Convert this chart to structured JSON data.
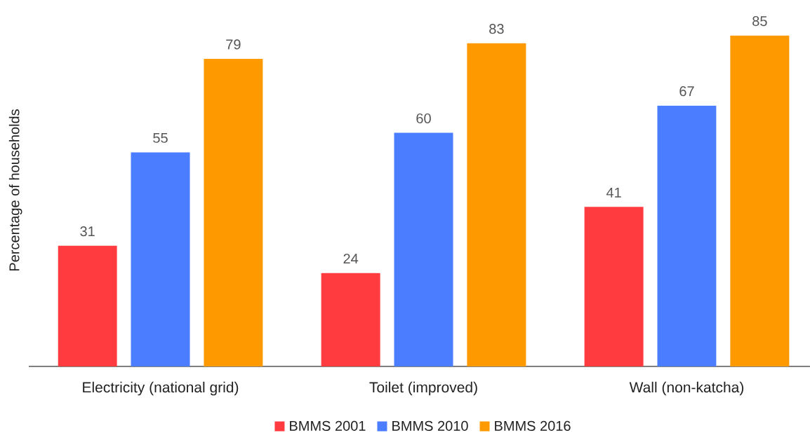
{
  "chart_data": {
    "type": "bar",
    "ylabel": "Percentage of households",
    "categories": [
      "Electricity (national grid)",
      "Toilet (improved)",
      "Wall (non-katcha)"
    ],
    "series": [
      {
        "name": "BMMS 2001",
        "color": "#ff3b3f",
        "values": [
          31,
          24,
          41
        ]
      },
      {
        "name": "BMMS 2010",
        "color": "#4a7dff",
        "values": [
          55,
          60,
          67
        ]
      },
      {
        "name": "BMMS 2016",
        "color": "#ff9900",
        "values": [
          79,
          83,
          85
        ]
      }
    ],
    "data_labels": true,
    "legend": "bottom",
    "tick_labels": "x"
  }
}
